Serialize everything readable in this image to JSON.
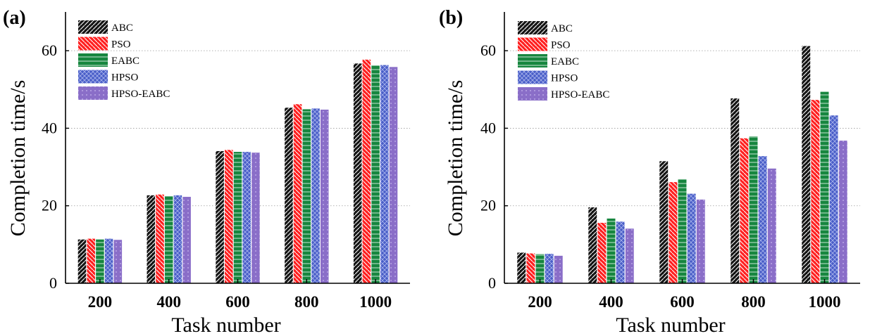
{
  "chart_data": [
    {
      "type": "bar",
      "panel_label": "(a)",
      "xlabel": "Task number",
      "ylabel": "Completion time/s",
      "categories": [
        "200",
        "400",
        "600",
        "800",
        "1000"
      ],
      "ylim": [
        0,
        70
      ],
      "yticks": [
        "0",
        "20",
        "40",
        "60"
      ],
      "grid": true,
      "legend_position": "top-left",
      "series": [
        {
          "name": "ABC",
          "values": [
            11.3,
            22.7,
            34.1,
            45.3,
            56.7
          ]
        },
        {
          "name": "PSO",
          "values": [
            11.5,
            22.9,
            34.4,
            46.2,
            57.7
          ]
        },
        {
          "name": "EABC",
          "values": [
            11.3,
            22.5,
            33.9,
            44.9,
            56.2
          ]
        },
        {
          "name": "HPSO",
          "values": [
            11.5,
            22.7,
            33.9,
            45.1,
            56.3
          ]
        },
        {
          "name": "HPSO-EABC",
          "values": [
            11.2,
            22.3,
            33.7,
            44.8,
            55.8
          ]
        }
      ]
    },
    {
      "type": "bar",
      "panel_label": "(b)",
      "xlabel": "Task number",
      "ylabel": "Completion time/s",
      "categories": [
        "200",
        "400",
        "600",
        "800",
        "1000"
      ],
      "ylim": [
        0,
        70
      ],
      "yticks": [
        "0",
        "20",
        "40",
        "60"
      ],
      "grid": true,
      "legend_position": "top-left",
      "series": [
        {
          "name": "ABC",
          "values": [
            7.9,
            19.6,
            31.5,
            47.7,
            61.2
          ]
        },
        {
          "name": "PSO",
          "values": [
            7.7,
            15.6,
            26.1,
            37.4,
            47.3
          ]
        },
        {
          "name": "EABC",
          "values": [
            7.5,
            16.7,
            26.9,
            37.9,
            49.4
          ]
        },
        {
          "name": "HPSO",
          "values": [
            7.6,
            15.9,
            23.1,
            32.8,
            43.3
          ]
        },
        {
          "name": "HPSO-EABC",
          "values": [
            7.1,
            14.1,
            21.6,
            29.6,
            36.8
          ]
        }
      ]
    }
  ],
  "series_styles": [
    {
      "fill": "#151515",
      "hatch": "#ffffff",
      "pattern": "slash"
    },
    {
      "fill": "#ff2020",
      "hatch": "#ffffff",
      "pattern": "backslash"
    },
    {
      "fill": "#17863f",
      "hatch": "#dff3e5",
      "pattern": "hline"
    },
    {
      "fill": "#4a5fc8",
      "hatch": "#b9c3f2",
      "pattern": "cross"
    },
    {
      "fill": "#8a6ec8",
      "hatch": "#c9b8ee",
      "pattern": "dots"
    }
  ]
}
